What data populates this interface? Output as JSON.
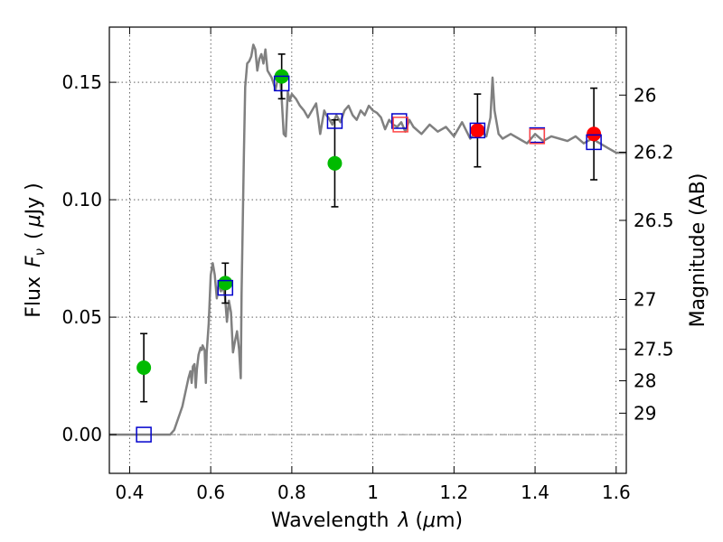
{
  "chart_data": {
    "type": "scatter",
    "xlabel_text": "Wavelength",
    "xlabel_symbol": "λ",
    "xlabel_unit_open": "(",
    "xlabel_unit_mu": "μ",
    "xlabel_unit_rest": "m)",
    "ylabel_text": "Flux",
    "ylabel_symbol": "F",
    "ylabel_subscript": "ν",
    "ylabel_unit_open": "(",
    "ylabel_unit_mu": "μ",
    "ylabel_unit_rest": "Jy )",
    "y2label": "Magnitude (AB)",
    "xlim": [
      0.35,
      1.625
    ],
    "ylim": [
      -0.0165,
      0.1735
    ],
    "x_ticks": [
      0.4,
      0.6,
      0.8,
      1.0,
      1.2,
      1.4,
      1.6
    ],
    "x_tick_labels": [
      "0.4",
      "0.6",
      "0.8",
      "1",
      "1.2",
      "1.4",
      "1.6"
    ],
    "y_ticks": [
      0.0,
      0.05,
      0.1,
      0.15
    ],
    "y_tick_labels": [
      "0.00",
      "0.05",
      "0.10",
      "0.15"
    ],
    "y2_ticks": [
      26,
      26.2,
      26.5,
      27,
      27.5,
      28,
      29
    ],
    "y2_tick_labels": [
      "26",
      "26.2",
      "26.5",
      "27",
      "27.5",
      "28",
      "29"
    ],
    "grid": true,
    "model_spectrum": {
      "color": "#808080",
      "x": [
        0.35,
        0.5,
        0.51,
        0.53,
        0.545,
        0.55,
        0.553,
        0.556,
        0.56,
        0.563,
        0.566,
        0.57,
        0.575,
        0.578,
        0.58,
        0.585,
        0.588,
        0.59,
        0.595,
        0.6,
        0.605,
        0.61,
        0.615,
        0.62,
        0.625,
        0.63,
        0.635,
        0.64,
        0.645,
        0.65,
        0.655,
        0.66,
        0.665,
        0.67,
        0.674,
        0.676,
        0.679,
        0.682,
        0.685,
        0.69,
        0.695,
        0.7,
        0.705,
        0.71,
        0.715,
        0.72,
        0.725,
        0.73,
        0.735,
        0.74,
        0.75,
        0.76,
        0.77,
        0.775,
        0.78,
        0.785,
        0.79,
        0.795,
        0.8,
        0.81,
        0.82,
        0.83,
        0.84,
        0.85,
        0.86,
        0.865,
        0.87,
        0.875,
        0.88,
        0.885,
        0.89,
        0.9,
        0.91,
        0.92,
        0.93,
        0.94,
        0.95,
        0.96,
        0.97,
        0.98,
        0.99,
        1.0,
        1.01,
        1.02,
        1.03,
        1.04,
        1.05,
        1.06,
        1.07,
        1.08,
        1.09,
        1.1,
        1.12,
        1.14,
        1.16,
        1.18,
        1.2,
        1.22,
        1.24,
        1.26,
        1.28,
        1.29,
        1.295,
        1.3,
        1.31,
        1.32,
        1.34,
        1.36,
        1.38,
        1.4,
        1.42,
        1.44,
        1.46,
        1.48,
        1.5,
        1.52,
        1.54,
        1.56,
        1.58,
        1.6,
        1.625
      ],
      "y": [
        0.0,
        0.0,
        0.002,
        0.012,
        0.024,
        0.027,
        0.022,
        0.029,
        0.03,
        0.02,
        0.028,
        0.034,
        0.037,
        0.036,
        0.038,
        0.036,
        0.022,
        0.035,
        0.047,
        0.068,
        0.073,
        0.068,
        0.058,
        0.065,
        0.061,
        0.063,
        0.059,
        0.048,
        0.057,
        0.052,
        0.035,
        0.04,
        0.044,
        0.036,
        0.024,
        0.06,
        0.09,
        0.12,
        0.148,
        0.158,
        0.159,
        0.161,
        0.166,
        0.164,
        0.155,
        0.16,
        0.162,
        0.158,
        0.164,
        0.155,
        0.152,
        0.147,
        0.155,
        0.143,
        0.128,
        0.127,
        0.146,
        0.142,
        0.145,
        0.143,
        0.14,
        0.138,
        0.135,
        0.138,
        0.141,
        0.135,
        0.128,
        0.133,
        0.138,
        0.136,
        0.135,
        0.132,
        0.136,
        0.133,
        0.138,
        0.14,
        0.136,
        0.134,
        0.138,
        0.136,
        0.14,
        0.138,
        0.137,
        0.135,
        0.13,
        0.134,
        0.132,
        0.131,
        0.133,
        0.129,
        0.134,
        0.131,
        0.128,
        0.132,
        0.129,
        0.131,
        0.127,
        0.133,
        0.126,
        0.13,
        0.127,
        0.135,
        0.152,
        0.138,
        0.128,
        0.126,
        0.128,
        0.126,
        0.124,
        0.128,
        0.125,
        0.127,
        0.126,
        0.125,
        0.127,
        0.124,
        0.126,
        0.124,
        0.122,
        0.12,
        0.12
      ]
    },
    "series": [
      {
        "marker": "circle",
        "color": "#00bb00",
        "x": [
          0.435,
          0.636,
          0.775,
          0.906
        ],
        "y": [
          0.0285,
          0.0645,
          0.1525,
          0.1155
        ],
        "yerr": [
          0.0145,
          0.0085,
          0.0095,
          0.0185
        ]
      },
      {
        "marker": "circle",
        "color": "#ff0000",
        "x": [
          1.258,
          1.545
        ],
        "y": [
          0.1295,
          0.128
        ],
        "yerr": [
          0.0155,
          0.0195
        ]
      },
      {
        "marker": "square-open",
        "color": "#0000cc",
        "x": [
          0.435,
          0.636,
          0.775,
          0.906,
          1.065,
          1.258,
          1.405,
          1.545
        ],
        "y": [
          0.0,
          0.0625,
          0.1495,
          0.1335,
          0.1335,
          0.1295,
          0.1275,
          0.1245
        ]
      },
      {
        "marker": "square-open",
        "color": "#ff4444",
        "x": [
          1.068,
          1.405
        ],
        "y": [
          0.132,
          0.127
        ]
      }
    ],
    "zero_line_color": "#808080"
  }
}
